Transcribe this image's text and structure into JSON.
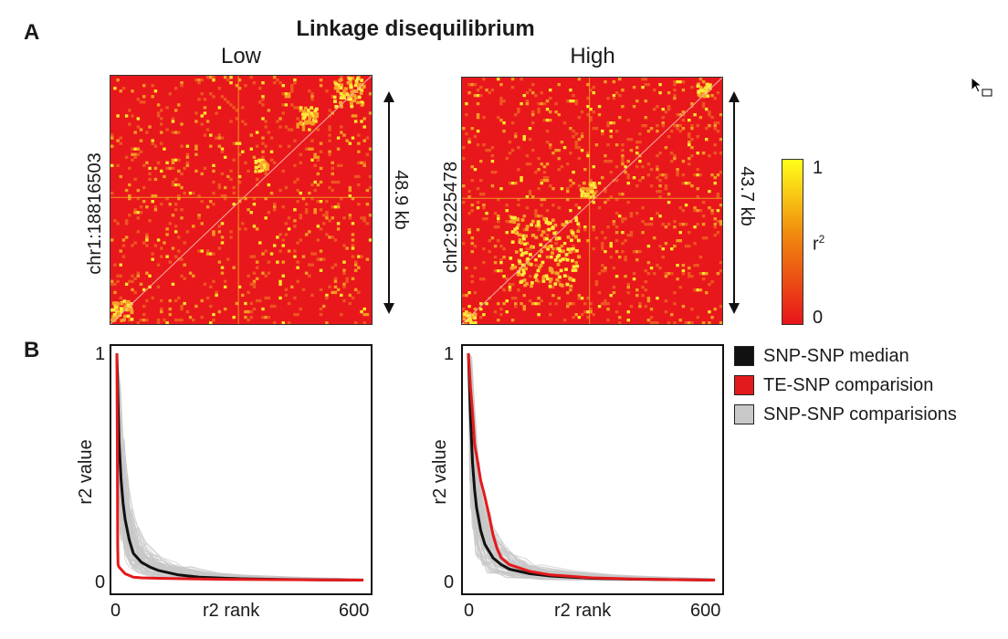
{
  "figure": {
    "panel_a_letter": "A",
    "panel_b_letter": "B",
    "title": "Linkage disequilibrium"
  },
  "heatmaps": [
    {
      "subtitle": "Low",
      "ylabel": "chr1:18816503",
      "distance": "48.9 kb",
      "seed": 7
    },
    {
      "subtitle": "High",
      "ylabel": "chr2:9225478",
      "distance": "43.7 kb",
      "seed": 13
    }
  ],
  "colorbar": {
    "top_label": "1",
    "mid_label": "r",
    "mid_sup": "2",
    "bottom_label": "0",
    "colors": [
      "#e8151b",
      "#f08a0e",
      "#ffff1a"
    ]
  },
  "legend": {
    "items": [
      {
        "label": "SNP-SNP median",
        "color": "#111111"
      },
      {
        "label": "TE-SNP comparision",
        "color": "#e31a1c"
      },
      {
        "label": "SNP-SNP comparisions",
        "color": "#c8c8c8"
      }
    ]
  },
  "chart_data": [
    {
      "type": "line",
      "panel": "Low",
      "xlabel": "r2 rank",
      "ylabel": "r2 value",
      "xlim": [
        0,
        600
      ],
      "ylim": [
        0,
        1
      ],
      "x_ticks": [
        "0",
        "600"
      ],
      "y_ticks": [
        "0",
        "1"
      ],
      "series": [
        {
          "name": "SNP-SNP median",
          "color": "#111111",
          "x": [
            0,
            5,
            10,
            15,
            20,
            30,
            40,
            60,
            80,
            100,
            150,
            200,
            300,
            400,
            500,
            600
          ],
          "values": [
            1.0,
            0.62,
            0.45,
            0.34,
            0.27,
            0.18,
            0.12,
            0.08,
            0.06,
            0.045,
            0.025,
            0.015,
            0.008,
            0.005,
            0.003,
            0.002
          ]
        },
        {
          "name": "TE-SNP comparision",
          "color": "#e31a1c",
          "x": [
            0,
            1,
            2,
            3,
            5,
            10,
            20,
            40,
            60,
            100,
            200,
            300,
            400,
            500,
            600
          ],
          "values": [
            1.0,
            0.6,
            0.15,
            0.07,
            0.06,
            0.05,
            0.03,
            0.015,
            0.012,
            0.01,
            0.007,
            0.005,
            0.004,
            0.003,
            0.002
          ]
        }
      ],
      "gray_band": {
        "series_count": 80,
        "color": "#c8c8c8"
      }
    },
    {
      "type": "line",
      "panel": "High",
      "xlabel": "r2 rank",
      "ylabel": "r2 value",
      "xlim": [
        0,
        600
      ],
      "ylim": [
        0,
        1
      ],
      "x_ticks": [
        "0",
        "600"
      ],
      "y_ticks": [
        "0",
        "1"
      ],
      "series": [
        {
          "name": "SNP-SNP median",
          "color": "#111111",
          "x": [
            0,
            5,
            10,
            15,
            20,
            30,
            40,
            60,
            80,
            100,
            150,
            200,
            300,
            400,
            500,
            600
          ],
          "values": [
            1.0,
            0.72,
            0.52,
            0.4,
            0.32,
            0.22,
            0.16,
            0.1,
            0.07,
            0.05,
            0.03,
            0.02,
            0.01,
            0.006,
            0.004,
            0.002
          ]
        },
        {
          "name": "TE-SNP comparision",
          "color": "#e31a1c",
          "x": [
            0,
            5,
            10,
            15,
            20,
            30,
            40,
            50,
            60,
            70,
            80,
            100,
            150,
            200,
            300,
            400,
            500,
            600
          ],
          "values": [
            1.0,
            0.85,
            0.74,
            0.6,
            0.55,
            0.44,
            0.37,
            0.29,
            0.2,
            0.14,
            0.1,
            0.07,
            0.04,
            0.025,
            0.012,
            0.007,
            0.004,
            0.002
          ]
        }
      ],
      "gray_band": {
        "series_count": 80,
        "color": "#c8c8c8"
      }
    }
  ]
}
